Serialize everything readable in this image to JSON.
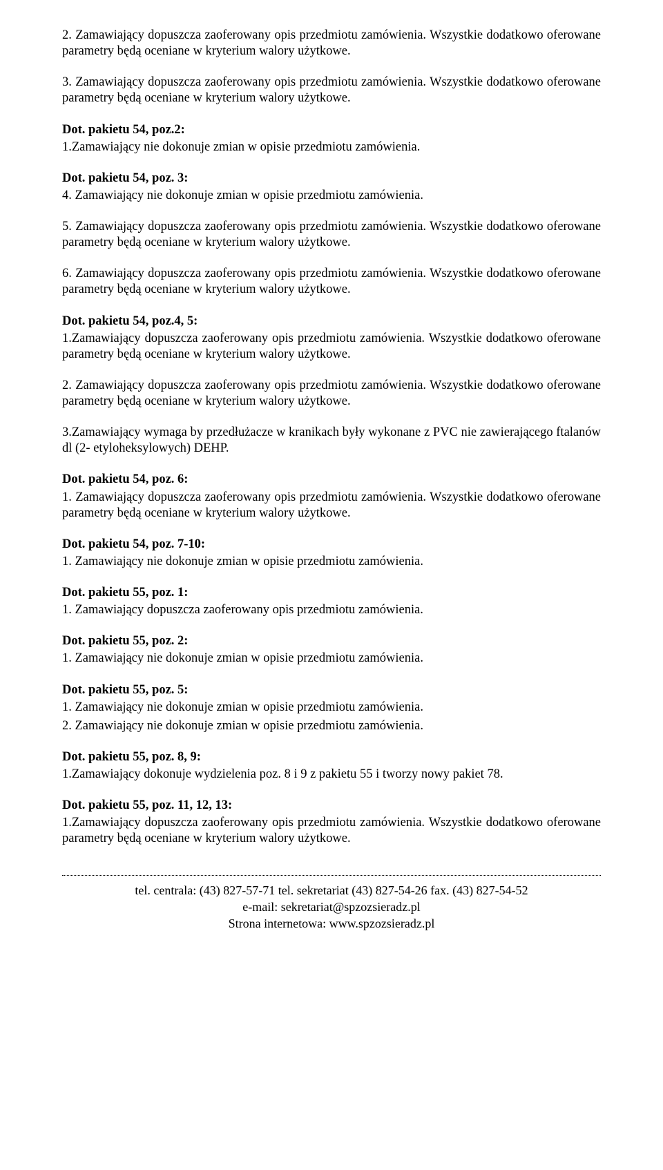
{
  "colors": {
    "text": "#000000",
    "background": "#ffffff",
    "dotted": "#000000"
  },
  "typography": {
    "font_family": "Times New Roman",
    "body_fontsize_pt": 14,
    "heading_weight": "bold"
  },
  "p1": "2. Zamawiający dopuszcza zaoferowany opis przedmiotu zamówienia. Wszystkie dodatkowo oferowane parametry będą oceniane w kryterium walory użytkowe.",
  "p2": "3. Zamawiający dopuszcza zaoferowany opis przedmiotu zamówienia. Wszystkie dodatkowo oferowane parametry będą oceniane w kryterium walory użytkowe.",
  "s1": {
    "h": "Dot. pakietu 54, poz.2:",
    "l1": "1.Zamawiający nie dokonuje zmian w opisie przedmiotu zamówienia."
  },
  "s2": {
    "h": "Dot. pakietu 54, poz. 3:",
    "l1": "4. Zamawiający nie dokonuje zmian w opisie przedmiotu zamówienia."
  },
  "p3": "5. Zamawiający dopuszcza zaoferowany opis przedmiotu zamówienia. Wszystkie dodatkowo oferowane parametry będą oceniane w kryterium walory użytkowe.",
  "p4": "6. Zamawiający dopuszcza zaoferowany opis przedmiotu zamówienia. Wszystkie dodatkowo oferowane parametry będą oceniane w kryterium walory użytkowe.",
  "s3": {
    "h": "Dot. pakietu 54, poz.4, 5:",
    "l1": "1.Zamawiający dopuszcza zaoferowany opis przedmiotu zamówienia. Wszystkie dodatkowo oferowane parametry będą oceniane w kryterium walory użytkowe."
  },
  "p5": "2. Zamawiający dopuszcza zaoferowany opis przedmiotu zamówienia. Wszystkie dodatkowo oferowane parametry będą oceniane w kryterium walory użytkowe.",
  "p6": "3.Zamawiający wymaga by przedłużacze w kranikach były wykonane z PVC nie zawierającego ftalanów dl (2- etyloheksylowych) DEHP.",
  "s4": {
    "h": "Dot. pakietu 54, poz. 6:",
    "l1": "1. Zamawiający dopuszcza zaoferowany opis przedmiotu zamówienia. Wszystkie dodatkowo oferowane parametry będą oceniane w kryterium walory użytkowe."
  },
  "s5": {
    "h": "Dot. pakietu 54, poz. 7-10:",
    "l1": "1. Zamawiający nie dokonuje zmian w opisie przedmiotu zamówienia."
  },
  "s6": {
    "h": "Dot. pakietu 55, poz. 1:",
    "l1": "1. Zamawiający dopuszcza zaoferowany opis przedmiotu zamówienia."
  },
  "s7": {
    "h": "Dot. pakietu 55, poz. 2:",
    "l1": "1. Zamawiający nie dokonuje zmian w opisie przedmiotu zamówienia."
  },
  "s8": {
    "h": "Dot. pakietu 55, poz. 5:",
    "l1": "1. Zamawiający nie dokonuje zmian w opisie przedmiotu zamówienia.",
    "l2": "2. Zamawiający nie dokonuje zmian w opisie przedmiotu zamówienia."
  },
  "s9": {
    "h": "Dot. pakietu 55, poz. 8, 9:",
    "l1": "1.Zamawiający dokonuje wydzielenia poz. 8 i 9 z pakietu 55 i tworzy nowy pakiet 78."
  },
  "s10": {
    "h": "Dot. pakietu 55, poz. 11, 12, 13:",
    "l1": "1.Zamawiający dopuszcza zaoferowany opis przedmiotu zamówienia. Wszystkie dodatkowo oferowane parametry będą oceniane w kryterium walory użytkowe."
  },
  "footer": {
    "line1": "tel. centrala: (43) 827-57-71   tel. sekretariat (43) 827-54-26   fax. (43) 827-54-52",
    "line2": "e-mail: sekretariat@spzozsieradz.pl",
    "line3": "Strona internetowa: www.spzozsieradz.pl"
  }
}
